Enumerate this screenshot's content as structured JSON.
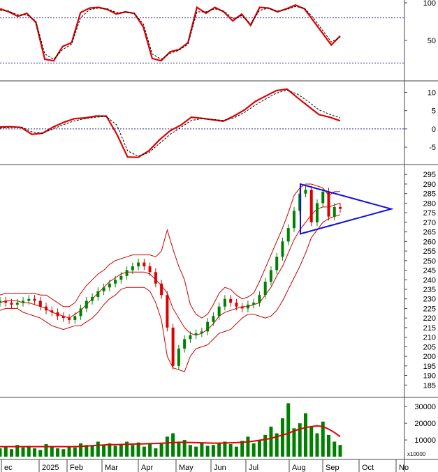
{
  "chart_data": [
    {
      "panel": "oscillator",
      "type": "line",
      "ylim": [
        0,
        100
      ],
      "y_ticks": [
        "50",
        "100"
      ],
      "reference_lines": [
        80,
        20
      ],
      "series": [
        {
          "color": "#e00000",
          "style": "solid",
          "values": [
            92,
            88,
            82,
            86,
            74,
            25,
            23,
            42,
            47,
            87,
            93,
            94,
            91,
            85,
            88,
            86,
            68,
            26,
            23,
            35,
            38,
            47,
            94,
            86,
            94,
            88,
            76,
            85,
            70,
            94,
            93,
            88,
            92,
            97,
            92,
            76,
            60,
            44,
            56
          ]
        },
        {
          "color": "#000000",
          "style": "dashed",
          "values": [
            90,
            89,
            84,
            84,
            76,
            32,
            25,
            38,
            45,
            80,
            91,
            93,
            92,
            87,
            87,
            86,
            72,
            32,
            25,
            33,
            37,
            45,
            88,
            88,
            92,
            89,
            79,
            83,
            72,
            90,
            93,
            89,
            91,
            95,
            93,
            80,
            64,
            48,
            54
          ]
        }
      ]
    },
    {
      "panel": "macd",
      "type": "line",
      "ylim": [
        -9,
        12
      ],
      "y_ticks": [
        "10",
        "5",
        "0",
        "-5"
      ],
      "reference_lines": [
        0
      ],
      "series": [
        {
          "color": "#e00000",
          "style": "solid",
          "values": [
            0.5,
            0.6,
            0.4,
            -1.5,
            -1.2,
            0.5,
            1.8,
            2.8,
            3.0,
            3.5,
            3.5,
            -1.5,
            -7.7,
            -7.8,
            -6,
            -3,
            -0.5,
            1.0,
            3.2,
            2.9,
            2.5,
            2.1,
            3.5,
            5.2,
            7.5,
            9.0,
            10.5,
            10.9,
            8.5,
            6.2,
            3.9,
            3.2,
            2.2
          ]
        },
        {
          "color": "#000000",
          "style": "dashed",
          "values": [
            0.2,
            0.4,
            0.5,
            -0.8,
            -1.2,
            0.0,
            1.2,
            2.2,
            2.8,
            3.2,
            3.4,
            1.0,
            -6.0,
            -7.5,
            -6.5,
            -4.0,
            -1.5,
            0.4,
            2.3,
            2.8,
            2.6,
            2.3,
            3.0,
            4.5,
            6.5,
            8.2,
            9.8,
            10.6,
            9.5,
            7.5,
            5.2,
            4.0,
            3.0
          ]
        }
      ]
    },
    {
      "panel": "price",
      "type": "candlestick",
      "ylim": [
        180,
        298
      ],
      "y_ticks": [
        "185",
        "190",
        "195",
        "200",
        "205",
        "210",
        "215",
        "220",
        "225",
        "230",
        "235",
        "240",
        "245",
        "250",
        "255",
        "260",
        "265",
        "270",
        "275",
        "280",
        "285",
        "290",
        "295"
      ],
      "x_labels": [
        "ec",
        "2025",
        "Feb",
        "Mar",
        "Apr",
        "May",
        "Jun",
        "Jul",
        "Aug",
        "Sep",
        "Oct",
        "No"
      ],
      "close": [
        229,
        228,
        227,
        228,
        229,
        230,
        229,
        226,
        224,
        223,
        221,
        220,
        219,
        221,
        225,
        229,
        231,
        234,
        236,
        238,
        240,
        242,
        245,
        247,
        249,
        247,
        244,
        238,
        232,
        215,
        195,
        204,
        209,
        211,
        212,
        213,
        218,
        221,
        226,
        230,
        228,
        226,
        225,
        227,
        228,
        232,
        239,
        245,
        252,
        260,
        267,
        276,
        285,
        287,
        270,
        280,
        286,
        273,
        278,
        277
      ],
      "bollinger": {
        "upper": [
          232,
          233,
          233,
          233,
          233,
          233,
          233,
          232,
          232,
          230,
          228,
          226,
          226,
          228,
          233,
          237,
          240,
          243,
          245,
          248,
          250,
          251,
          252,
          253,
          253,
          253,
          253,
          252,
          255,
          266,
          256,
          247,
          240,
          227,
          222,
          220,
          222,
          227,
          233,
          236,
          235,
          232,
          230,
          231,
          233,
          239,
          246,
          253,
          260,
          267,
          275,
          284,
          288,
          290,
          290,
          289,
          288,
          284,
          286,
          286
        ],
        "middle": [
          228,
          229,
          229,
          229,
          228,
          228,
          227,
          226,
          225,
          223,
          222,
          221,
          220,
          222,
          224,
          227,
          230,
          233,
          236,
          239,
          241,
          243,
          244,
          244,
          244,
          244,
          243,
          240,
          237,
          233,
          225,
          220,
          215,
          212,
          211,
          212,
          214,
          217,
          221,
          223,
          224,
          225,
          226,
          226,
          227,
          228,
          232,
          236,
          242,
          247,
          254,
          261,
          266,
          270,
          274,
          277,
          278,
          278,
          279,
          280
        ],
        "lower": [
          224,
          225,
          225,
          225,
          223,
          222,
          221,
          220,
          218,
          216,
          215,
          214,
          215,
          216,
          216,
          218,
          220,
          223,
          227,
          230,
          232,
          235,
          236,
          236,
          236,
          236,
          234,
          228,
          219,
          200,
          194,
          193,
          192,
          200,
          204,
          205,
          206,
          209,
          212,
          213,
          214,
          217,
          220,
          222,
          222,
          221,
          220,
          221,
          224,
          229,
          235,
          241,
          247,
          254,
          262,
          266,
          270,
          272,
          273,
          274
        ]
      },
      "triangle_pattern": {
        "color": "#1010dd",
        "points": [
          [
            0,
            290
          ],
          [
            0,
            264
          ],
          [
            1,
            277
          ]
        ]
      }
    },
    {
      "panel": "volume",
      "type": "bar",
      "ylim": [
        0,
        33000
      ],
      "y_ticks": [
        "10000",
        "20000",
        "30000"
      ],
      "unit_label": "x10000",
      "bar_color": "#008000",
      "average_color": "#e00000",
      "values": [
        5000,
        6000,
        4500,
        7000,
        5500,
        6500,
        5000,
        4000,
        7500,
        6000,
        5000,
        4500,
        6000,
        5500,
        8000,
        7000,
        6500,
        9000,
        7000,
        8000,
        6500,
        7500,
        9000,
        7000,
        8500,
        6000,
        7500,
        5000,
        8000,
        12000,
        14000,
        9000,
        10000,
        7000,
        6000,
        8500,
        6500,
        7000,
        8000,
        9000,
        7500,
        6000,
        9500,
        12000,
        8000,
        10000,
        13000,
        18000,
        14000,
        23000,
        32000,
        17000,
        20000,
        26000,
        18000,
        14000,
        21000,
        13000,
        9000,
        7000
      ],
      "average": [
        6000,
        6000,
        6000,
        6000,
        6000,
        6000,
        6000,
        6000,
        6000,
        6000,
        6000,
        6000,
        6000,
        6000,
        6200,
        6400,
        6600,
        6800,
        7000,
        7200,
        7200,
        7300,
        7400,
        7500,
        7600,
        7700,
        7800,
        7900,
        8000,
        8200,
        8400,
        8600,
        8600,
        8500,
        8400,
        8300,
        8200,
        8100,
        8100,
        8200,
        8300,
        8400,
        8600,
        8900,
        9300,
        9800,
        10300,
        11000,
        12000,
        13000,
        14000,
        15500,
        16500,
        17500,
        18000,
        18500,
        18000,
        16500,
        14500,
        12000
      ]
    }
  ]
}
